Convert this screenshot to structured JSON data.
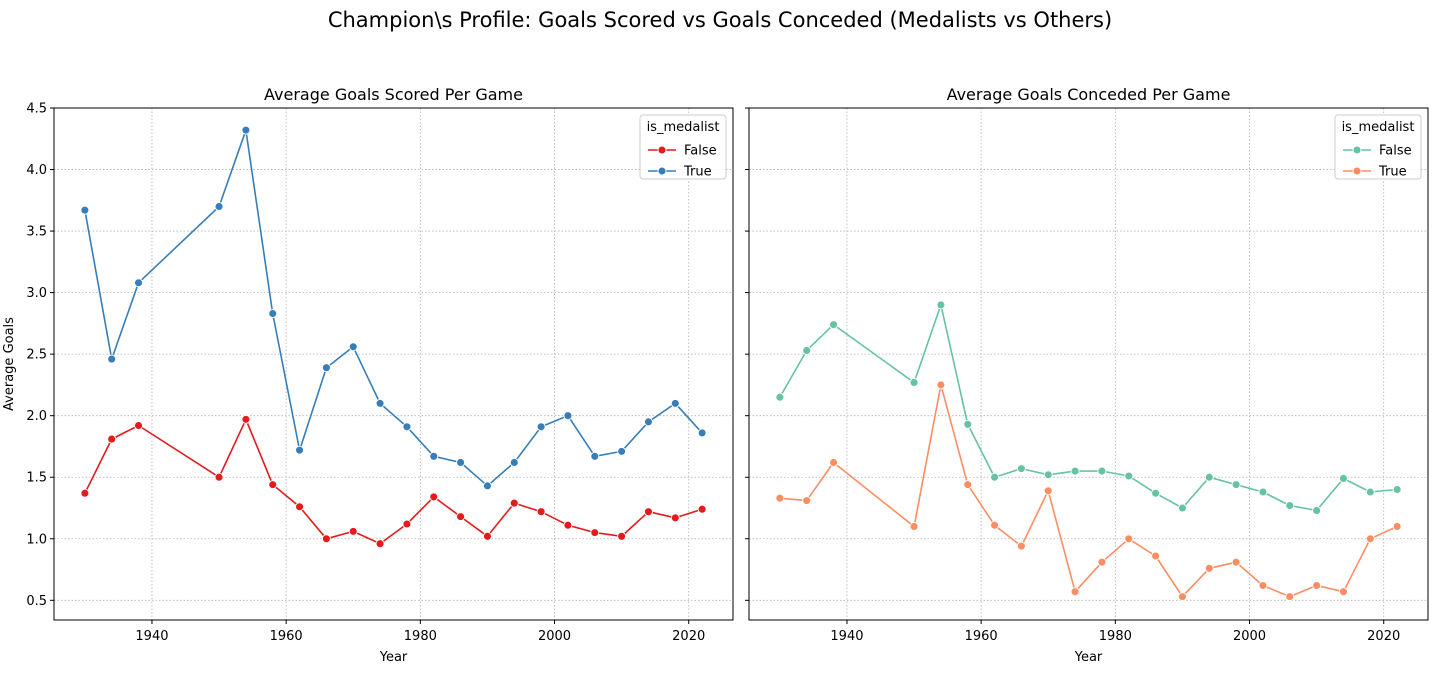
{
  "suptitle": "Champion\\s Profile: Goals Scored vs Goals Conceded (Medalists vs Others)",
  "chart_data": [
    {
      "type": "line",
      "title": "Average Goals Scored Per Game",
      "xlabel": "Year",
      "ylabel": "Average Goals",
      "xlim": [
        1925.4,
        2026.6
      ],
      "ylim": [
        0.34,
        4.5
      ],
      "xticks": [
        1940,
        1960,
        1980,
        2000,
        2020
      ],
      "yticks": [
        "0.5",
        "1.0",
        "1.5",
        "2.0",
        "2.5",
        "3.0",
        "3.5",
        "4.0",
        "4.5"
      ],
      "grid": true,
      "legend": {
        "title": "is_medalist",
        "position": "top-right"
      },
      "x": [
        1930,
        1934,
        1938,
        1950,
        1954,
        1958,
        1962,
        1966,
        1970,
        1974,
        1978,
        1982,
        1986,
        1990,
        1994,
        1998,
        2002,
        2006,
        2010,
        2014,
        2018,
        2022
      ],
      "series": [
        {
          "name": "False",
          "color": "#e41a1c",
          "values": [
            1.37,
            1.81,
            1.92,
            1.5,
            1.97,
            1.44,
            1.26,
            1.0,
            1.06,
            0.96,
            1.12,
            1.34,
            1.18,
            1.02,
            1.29,
            1.22,
            1.11,
            1.05,
            1.02,
            1.22,
            1.17,
            1.24
          ]
        },
        {
          "name": "True",
          "color": "#377eb8",
          "values": [
            3.67,
            2.46,
            3.08,
            3.7,
            4.32,
            2.83,
            1.72,
            2.39,
            2.56,
            2.1,
            1.91,
            1.67,
            1.62,
            1.43,
            1.62,
            1.91,
            2.0,
            1.67,
            1.71,
            1.95,
            2.1,
            1.86
          ]
        }
      ]
    },
    {
      "type": "line",
      "title": "Average Goals Conceded Per Game",
      "xlabel": "Year",
      "ylabel": "",
      "xlim": [
        1925.4,
        2026.6
      ],
      "ylim": [
        0.34,
        4.5
      ],
      "xticks": [
        1940,
        1960,
        1980,
        2000,
        2020
      ],
      "yticks": [],
      "grid": true,
      "legend": {
        "title": "is_medalist",
        "position": "top-right"
      },
      "x": [
        1930,
        1934,
        1938,
        1950,
        1954,
        1958,
        1962,
        1966,
        1970,
        1974,
        1978,
        1982,
        1986,
        1990,
        1994,
        1998,
        2002,
        2006,
        2010,
        2014,
        2018,
        2022
      ],
      "series": [
        {
          "name": "False",
          "color": "#66c2a5",
          "values": [
            2.15,
            2.53,
            2.74,
            2.27,
            2.9,
            1.93,
            1.5,
            1.57,
            1.52,
            1.55,
            1.55,
            1.51,
            1.37,
            1.25,
            1.5,
            1.44,
            1.38,
            1.27,
            1.23,
            1.49,
            1.38,
            1.4
          ]
        },
        {
          "name": "True",
          "color": "#fc8d62",
          "values": [
            1.33,
            1.31,
            1.62,
            1.1,
            2.25,
            1.44,
            1.11,
            0.94,
            1.39,
            0.57,
            0.81,
            1.0,
            0.86,
            0.53,
            0.76,
            0.81,
            0.62,
            0.53,
            0.62,
            0.57,
            1.0,
            1.1
          ]
        }
      ]
    }
  ]
}
